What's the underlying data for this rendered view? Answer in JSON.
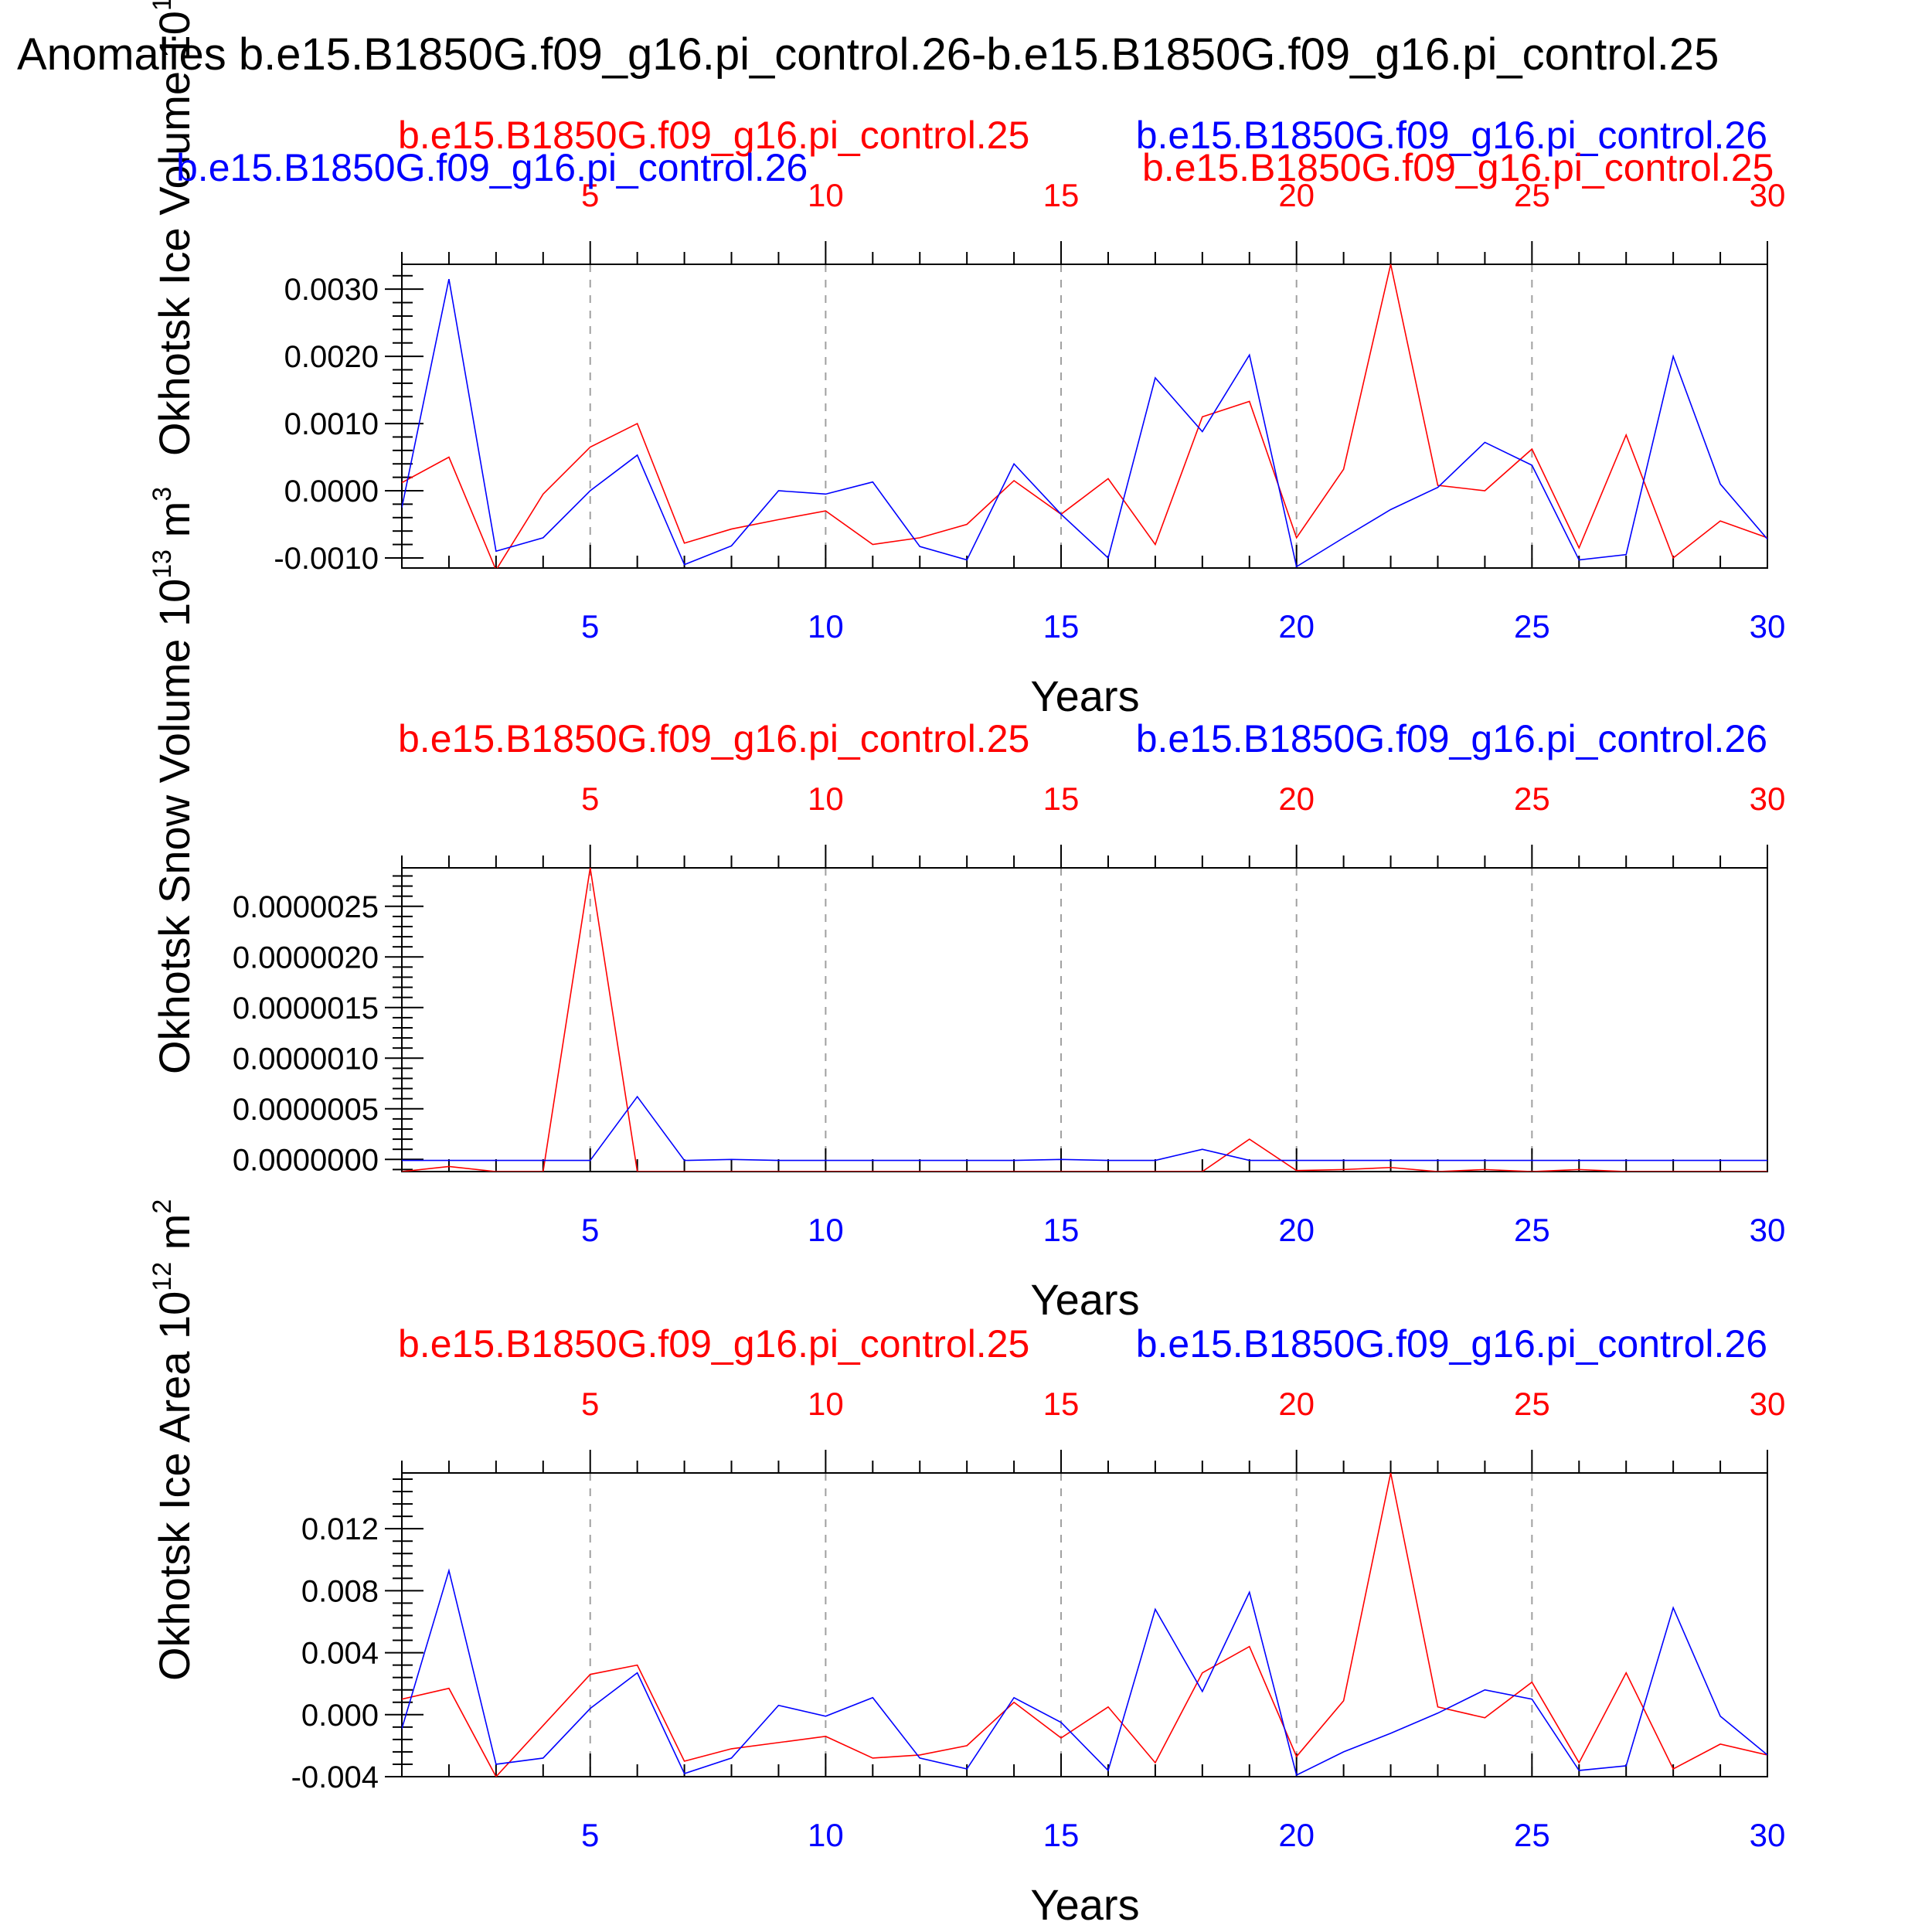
{
  "title": "Anomalies b.e15.B1850G.f09_g16.pi_control.26-b.e15.B1850G.f09_g16.pi_control.25",
  "colors": {
    "run25": "#ff0000",
    "run26": "#0000ff",
    "axis": "#000000",
    "grid": "#a0a0a0"
  },
  "chart_data": [
    {
      "type": "line",
      "ylabel": "Okhotsk Ice Volume 10",
      "yexp": "13",
      "yunit": "m",
      "yunit_exp": "3",
      "xlabel": "Years",
      "xlim": [
        1,
        30
      ],
      "ylim": [
        -0.00115,
        0.00337
      ],
      "yticks": [
        -0.001,
        0.0,
        0.001,
        0.002,
        0.003
      ],
      "ytick_labels": [
        "-0.0010",
        "0.0000",
        "0.0010",
        "0.0020",
        "0.0030"
      ],
      "xticks": [
        5,
        10,
        15,
        20,
        25,
        30
      ],
      "xtick_labels": [
        "5",
        "10",
        "15",
        "20",
        "25",
        "30"
      ],
      "grid_x": [
        5,
        10,
        15,
        20,
        25
      ],
      "legend": {
        "run25": "b.e15.B1850G.f09_g16.pi_control.25",
        "run26": "b.e15.B1850G.f09_g16.pi_control.26",
        "run26_extra": "b.e15.B1850G.f09_g16.pi_control.26",
        "run25_extra": "b.e15.B1850G.f09_g16.pi_control.25"
      },
      "x": [
        1,
        2,
        3,
        4,
        5,
        6,
        7,
        8,
        9,
        10,
        11,
        12,
        13,
        14,
        15,
        16,
        17,
        18,
        19,
        20,
        21,
        22,
        23,
        24,
        25,
        26,
        27,
        28,
        29,
        30
      ],
      "series": [
        {
          "name": "b.e15.B1850G.f09_g16.pi_control.25",
          "color": "#ff0000",
          "values": [
            0.00012,
            0.0005,
            -0.00118,
            -5e-05,
            0.00065,
            0.001,
            -0.00078,
            -0.00057,
            -0.00043,
            -0.0003,
            -0.0008,
            -0.0007,
            -0.0005,
            0.00015,
            -0.00035,
            0.00018,
            -0.0008,
            0.0011,
            0.00133,
            -0.0007,
            0.00032,
            0.00337,
            8e-05,
            0.0,
            0.00062,
            -0.00085,
            0.00083,
            -0.001,
            -0.00045,
            -0.0007
          ]
        },
        {
          "name": "b.e15.B1850G.f09_g16.pi_control.26",
          "color": "#0000ff",
          "values": [
            -0.00025,
            0.00315,
            -0.0009,
            -0.0007,
            0.0,
            0.00053,
            -0.0011,
            -0.00082,
            0.0,
            -5e-05,
            0.00013,
            -0.00083,
            -0.00103,
            0.0004,
            -0.00035,
            -0.001,
            0.00168,
            0.00088,
            0.00202,
            -0.00113,
            -0.0007,
            -0.00028,
            5e-05,
            0.00072,
            0.00038,
            -0.00103,
            -0.00095,
            0.002,
            0.0001,
            -0.00072
          ]
        }
      ]
    },
    {
      "type": "line",
      "ylabel": "Okhotsk Snow Volume 10",
      "yexp": "13",
      "yunit": "m",
      "yunit_exp": "3",
      "xlabel": "Years",
      "xlim": [
        1,
        30
      ],
      "ylim": [
        -1.2e-07,
        2.88e-06
      ],
      "yticks": [
        0.0,
        5e-07,
        1e-06,
        1.5e-06,
        2e-06,
        2.5e-06
      ],
      "ytick_labels": [
        "0.0000000",
        "0.0000005",
        "0.0000010",
        "0.0000015",
        "0.0000020",
        "0.0000025"
      ],
      "xticks": [
        5,
        10,
        15,
        20,
        25,
        30
      ],
      "xtick_labels": [
        "5",
        "10",
        "15",
        "20",
        "25",
        "30"
      ],
      "grid_x": [
        5,
        10,
        15,
        20,
        25
      ],
      "legend": {
        "run25": "b.e15.B1850G.f09_g16.pi_control.25",
        "run26": "b.e15.B1850G.f09_g16.pi_control.26"
      },
      "x": [
        1,
        2,
        3,
        4,
        5,
        6,
        7,
        8,
        9,
        10,
        11,
        12,
        13,
        14,
        15,
        16,
        17,
        18,
        19,
        20,
        21,
        22,
        23,
        24,
        25,
        26,
        27,
        28,
        29,
        30
      ],
      "series": [
        {
          "name": "b.e15.B1850G.f09_g16.pi_control.25",
          "color": "#ff0000",
          "values": [
            -1.2e-07,
            -7e-08,
            -1.2e-07,
            -1.2e-07,
            2.88e-06,
            -1.2e-07,
            -1.2e-07,
            -1.2e-07,
            -1.2e-07,
            -1.2e-07,
            -1.2e-07,
            -1.2e-07,
            -1.2e-07,
            -1.2e-07,
            -1.2e-07,
            -1.2e-07,
            -1.2e-07,
            -1.2e-07,
            2e-07,
            -1.1e-07,
            -1e-07,
            -8e-08,
            -1.2e-07,
            -1e-07,
            -1.2e-07,
            -1e-07,
            -1.2e-07,
            -1.2e-07,
            -1.2e-07,
            -1.2e-07
          ]
        },
        {
          "name": "b.e15.B1850G.f09_g16.pi_control.26",
          "color": "#0000ff",
          "values": [
            -1e-08,
            -1e-08,
            -1e-08,
            -1e-08,
            -1e-08,
            6.2e-07,
            -1e-08,
            0.0,
            -1e-08,
            -1e-08,
            -1e-08,
            -1e-08,
            -1e-08,
            -1e-08,
            0.0,
            -1e-08,
            -1e-08,
            1e-07,
            -1e-08,
            -1e-08,
            -1e-08,
            -1e-08,
            -1e-08,
            -1e-08,
            -1e-08,
            -1e-08,
            -1e-08,
            -1e-08,
            -1e-08,
            -1e-08
          ]
        }
      ]
    },
    {
      "type": "line",
      "ylabel": "Okhotsk Ice Area 10",
      "yexp": "12",
      "yunit": "m",
      "yunit_exp": "2",
      "xlabel": "Years",
      "xlim": [
        1,
        30
      ],
      "ylim": [
        -0.004,
        0.0156
      ],
      "yticks": [
        -0.004,
        0.0,
        0.004,
        0.008,
        0.012
      ],
      "ytick_labels": [
        "-0.004",
        "0.000",
        "0.004",
        "0.008",
        "0.012"
      ],
      "xticks": [
        5,
        10,
        15,
        20,
        25,
        30
      ],
      "xtick_labels": [
        "5",
        "10",
        "15",
        "20",
        "25",
        "30"
      ],
      "grid_x": [
        5,
        10,
        15,
        20,
        25
      ],
      "legend": {
        "run25": "b.e15.B1850G.f09_g16.pi_control.25",
        "run26": "b.e15.B1850G.f09_g16.pi_control.26"
      },
      "x": [
        1,
        2,
        3,
        4,
        5,
        6,
        7,
        8,
        9,
        10,
        11,
        12,
        13,
        14,
        15,
        16,
        17,
        18,
        19,
        20,
        21,
        22,
        23,
        24,
        25,
        26,
        27,
        28,
        29,
        30
      ],
      "series": [
        {
          "name": "b.e15.B1850G.f09_g16.pi_control.25",
          "color": "#ff0000",
          "values": [
            0.001,
            0.0017,
            -0.004,
            -0.0007,
            0.0026,
            0.0032,
            -0.003,
            -0.0022,
            -0.0018,
            -0.0014,
            -0.0028,
            -0.0026,
            -0.002,
            0.0008,
            -0.0015,
            0.0005,
            -0.0031,
            0.0027,
            0.0044,
            -0.0027,
            0.0009,
            0.0156,
            0.0005,
            -0.0002,
            0.0021,
            -0.0031,
            0.0027,
            -0.0035,
            -0.0019,
            -0.0026
          ]
        },
        {
          "name": "b.e15.B1850G.f09_g16.pi_control.26",
          "color": "#0000ff",
          "values": [
            -0.0009,
            0.0093,
            -0.0032,
            -0.0028,
            0.0004,
            0.0027,
            -0.0038,
            -0.0028,
            0.0006,
            -0.0001,
            0.0011,
            -0.0028,
            -0.0035,
            0.0011,
            -0.0005,
            -0.0036,
            0.0068,
            0.0015,
            0.0079,
            -0.0039,
            -0.0024,
            -0.0012,
            0.0001,
            0.0016,
            0.001,
            -0.0036,
            -0.0033,
            0.0069,
            -0.0001,
            -0.0026
          ]
        }
      ]
    }
  ]
}
